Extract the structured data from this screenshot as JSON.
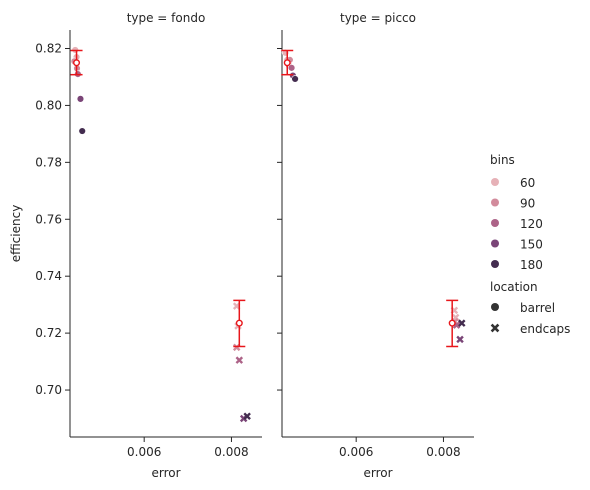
{
  "chart_data": {
    "type": "scatter",
    "ylabel": "efficiency",
    "xlabel": "error",
    "xlim": [
      0.0043,
      0.0087
    ],
    "ylim": [
      0.6835,
      0.8265
    ],
    "xticks": [
      0.006,
      0.008
    ],
    "xtick_labels": [
      "0.006",
      "0.008"
    ],
    "yticks": [
      0.7,
      0.72,
      0.74,
      0.76,
      0.78,
      0.8,
      0.82
    ],
    "ytick_labels": [
      "0.70",
      "0.72",
      "0.74",
      "0.76",
      "0.78",
      "0.80",
      "0.82"
    ],
    "panels": [
      {
        "title": "type = fondo",
        "points": [
          {
            "bins": 60,
            "location": "barrel",
            "x": 0.00442,
            "y": 0.8195
          },
          {
            "bins": 60,
            "location": "barrel",
            "x": 0.00445,
            "y": 0.817
          },
          {
            "bins": 90,
            "location": "barrel",
            "x": 0.0044,
            "y": 0.8155
          },
          {
            "bins": 90,
            "location": "barrel",
            "x": 0.00446,
            "y": 0.813
          },
          {
            "bins": 120,
            "location": "barrel",
            "x": 0.00448,
            "y": 0.811
          },
          {
            "bins": 150,
            "location": "barrel",
            "x": 0.00454,
            "y": 0.8023
          },
          {
            "bins": 180,
            "location": "barrel",
            "x": 0.00458,
            "y": 0.791
          },
          {
            "bins": 60,
            "location": "endcaps",
            "x": 0.00812,
            "y": 0.7295
          },
          {
            "bins": 60,
            "location": "endcaps",
            "x": 0.00815,
            "y": 0.7225
          },
          {
            "bins": 90,
            "location": "endcaps",
            "x": 0.00812,
            "y": 0.715
          },
          {
            "bins": 120,
            "location": "endcaps",
            "x": 0.00818,
            "y": 0.7105
          },
          {
            "bins": 150,
            "location": "endcaps",
            "x": 0.00828,
            "y": 0.69
          },
          {
            "bins": 180,
            "location": "endcaps",
            "x": 0.00836,
            "y": 0.6908
          }
        ],
        "error_bars": [
          {
            "x": 0.00445,
            "y": 0.815,
            "ylow": 0.8108,
            "yhigh": 0.8193
          },
          {
            "x": 0.00818,
            "y": 0.7235,
            "ylow": 0.7153,
            "yhigh": 0.7315
          }
        ]
      },
      {
        "title": "type = picco",
        "points": [
          {
            "bins": 60,
            "location": "barrel",
            "x": 0.00438,
            "y": 0.8185
          },
          {
            "bins": 60,
            "location": "barrel",
            "x": 0.00442,
            "y": 0.816
          },
          {
            "bins": 90,
            "location": "barrel",
            "x": 0.00448,
            "y": 0.816
          },
          {
            "bins": 90,
            "location": "barrel",
            "x": 0.00446,
            "y": 0.814
          },
          {
            "bins": 120,
            "location": "barrel",
            "x": 0.00452,
            "y": 0.8132
          },
          {
            "bins": 150,
            "location": "barrel",
            "x": 0.00455,
            "y": 0.8105
          },
          {
            "bins": 180,
            "location": "barrel",
            "x": 0.0046,
            "y": 0.8093
          },
          {
            "bins": 60,
            "location": "endcaps",
            "x": 0.00825,
            "y": 0.728
          },
          {
            "bins": 60,
            "location": "endcaps",
            "x": 0.00828,
            "y": 0.7255
          },
          {
            "bins": 90,
            "location": "endcaps",
            "x": 0.00826,
            "y": 0.724
          },
          {
            "bins": 120,
            "location": "endcaps",
            "x": 0.0083,
            "y": 0.7228
          },
          {
            "bins": 150,
            "location": "endcaps",
            "x": 0.00838,
            "y": 0.7178
          },
          {
            "bins": 180,
            "location": "endcaps",
            "x": 0.00842,
            "y": 0.7235
          }
        ],
        "error_bars": [
          {
            "x": 0.00442,
            "y": 0.815,
            "ylow": 0.8108,
            "yhigh": 0.8193
          },
          {
            "x": 0.0082,
            "y": 0.7235,
            "ylow": 0.7153,
            "yhigh": 0.7315
          }
        ]
      }
    ],
    "legend": {
      "placement": "right",
      "bins_title": "bins",
      "bins": [
        {
          "label": "60",
          "color": "#e6b1b7"
        },
        {
          "label": "90",
          "color": "#d28b9c"
        },
        {
          "label": "120",
          "color": "#ad6388"
        },
        {
          "label": "150",
          "color": "#7a4577"
        },
        {
          "label": "180",
          "color": "#432c4f"
        }
      ],
      "location_title": "location",
      "locations": [
        {
          "label": "barrel",
          "marker": "circle"
        },
        {
          "label": "endcaps",
          "marker": "x"
        }
      ]
    },
    "error_bar_color": "#e8161b",
    "grid": false
  }
}
